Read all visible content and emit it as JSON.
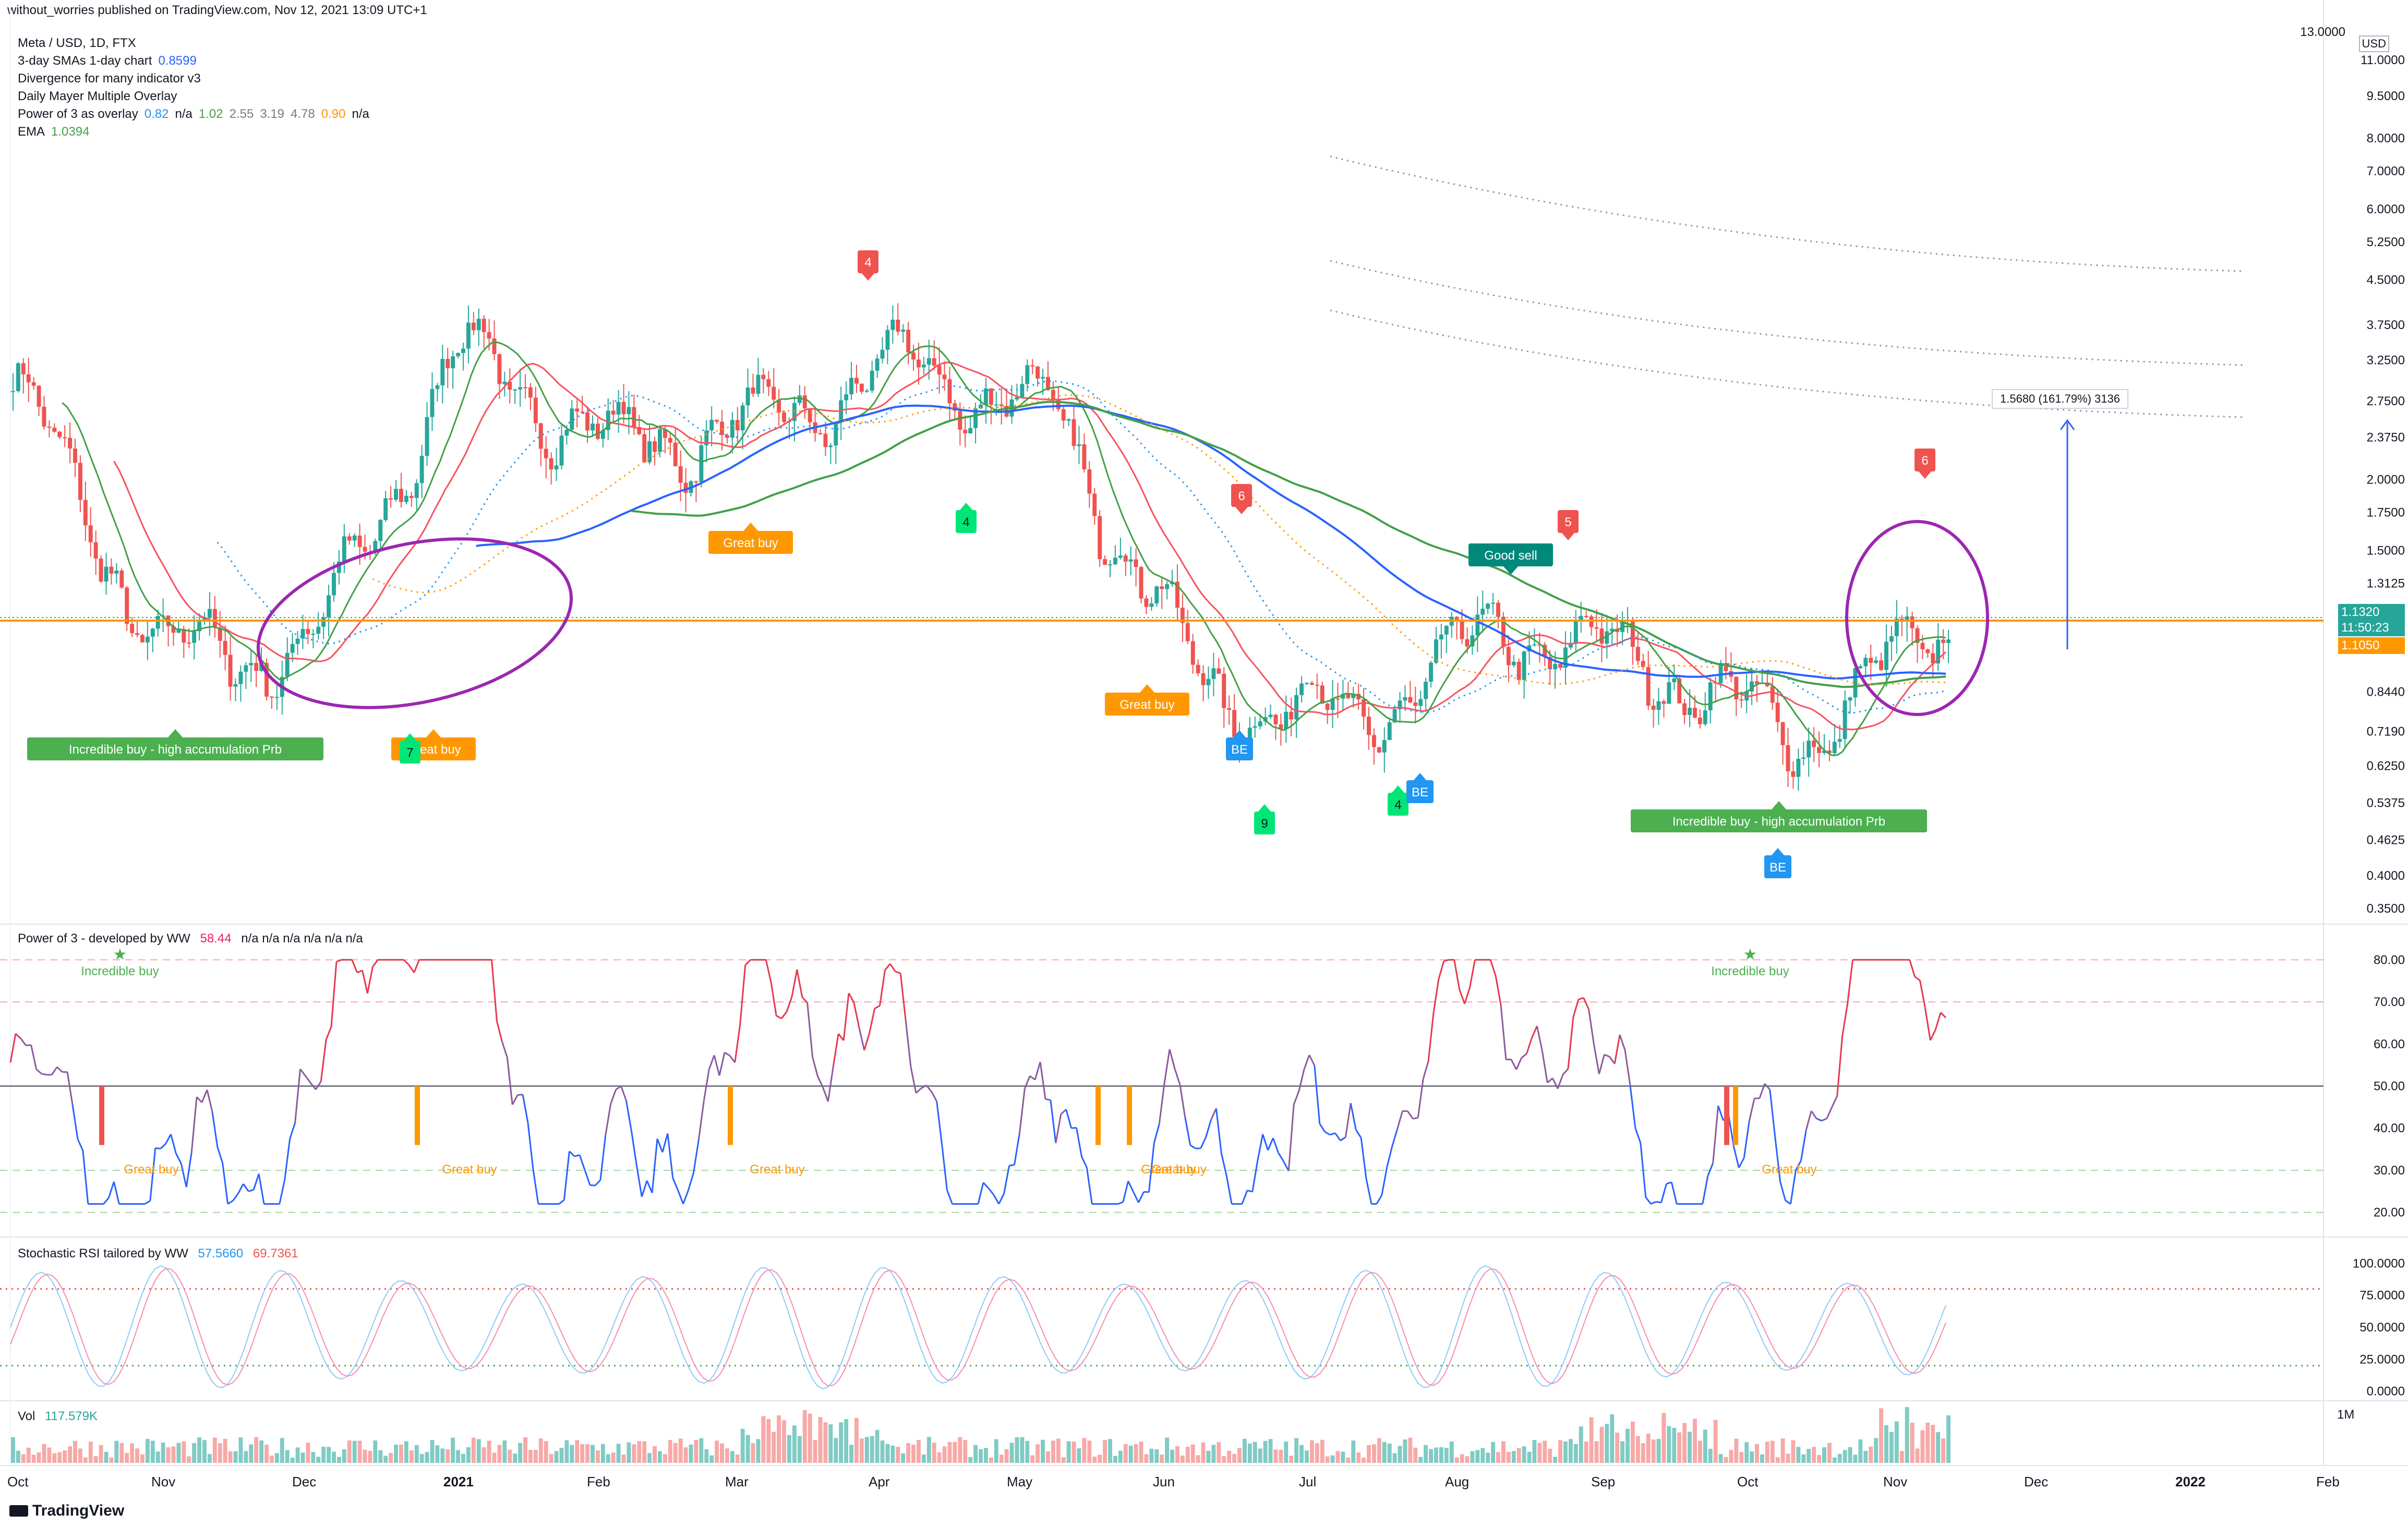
{
  "header": {
    "published": "without_worries published on TradingView.com, Nov 12, 2021 13:09 UTC+1"
  },
  "legend": {
    "symbol": "Meta / USD, 1D, FTX",
    "items": [
      {
        "name": "3-day SMAs 1-day chart",
        "values": [
          "0.8599"
        ],
        "colors": [
          "#2962ff"
        ]
      },
      {
        "name": "Divergence for many indicator v3",
        "values": [],
        "colors": []
      },
      {
        "name": "Daily Mayer Multiple Overlay",
        "values": [],
        "colors": []
      },
      {
        "name": "Power of 3 as overlay",
        "values": [
          "0.82",
          "n/a",
          "1.02",
          "2.55",
          "3.19",
          "4.78",
          "0.90",
          "n/a"
        ],
        "colors": [
          "#2196f3",
          "#131722",
          "#43a047",
          "#787b86",
          "#787b86",
          "#787b86",
          "#ff9800",
          "#131722"
        ]
      },
      {
        "name": "EMA",
        "values": [
          "1.0394"
        ],
        "colors": [
          "#43a047"
        ]
      }
    ]
  },
  "panes": {
    "power": {
      "title": "Power of 3 - developed by WW",
      "value": "58.44",
      "value_color": "#e91e63",
      "na": "n/a  n/a  n/a  n/a  n/a  n/a"
    },
    "stoch": {
      "title": "Stochastic RSI tailored by WW",
      "k": "57.5660",
      "d": "69.7361"
    },
    "vol": {
      "title": "Vol",
      "value": "117.579K"
    }
  },
  "price_axis": {
    "currency": "USD",
    "top_label": "13.0000"
  },
  "price_tags": {
    "last": "1.1320",
    "countdown": "11:50:23",
    "ema": "1.1050"
  },
  "measure": {
    "label": "1.5680 (161.79%) 3136"
  },
  "time_axis": [
    "Oct",
    "Nov",
    "Dec",
    "2021",
    "Feb",
    "Mar",
    "Apr",
    "May",
    "Jun",
    "Jul",
    "Aug",
    "Sep",
    "Oct",
    "Nov",
    "Dec",
    "2022",
    "Feb"
  ],
  "footer": {
    "brand": "TradingView"
  },
  "colors": {
    "up": "#26a69a",
    "down": "#ef5350",
    "ema": "#43a047",
    "sma": "#2962ff",
    "circle": "#9c27b0",
    "orange": "#ff9800"
  },
  "chart_data": {
    "type": "candlestick",
    "price_scale": "log",
    "ylim": [
      0.33,
      13.0
    ],
    "y_ticks": [
      13.0,
      11.0,
      9.5,
      8.0,
      7.0,
      6.0,
      5.25,
      4.5,
      3.75,
      3.25,
      2.75,
      2.375,
      2.0,
      1.75,
      1.5,
      1.3125,
      1.132,
      0.844,
      0.719,
      0.625,
      0.5375,
      0.4625,
      0.4,
      0.35
    ],
    "y_tick_labels": [
      "13.0000",
      "11.0000",
      "9.5000",
      "8.0000",
      "7.0000",
      "6.0000",
      "5.2500",
      "4.5000",
      "3.7500",
      "3.2500",
      "2.7500",
      "2.3750",
      "2.0000",
      "1.7500",
      "1.5000",
      "1.3125",
      "",
      "0.8440",
      "0.7190",
      "0.6250",
      "0.5375",
      "0.4625",
      "0.4000",
      "0.3500"
    ],
    "close_series": [
      {
        "month": "Oct 2020",
        "close": 3.0
      },
      {
        "month": "Nov 2020",
        "close": 1.0
      },
      {
        "month": "Dec 2020",
        "close": 1.0
      },
      {
        "month": "Jan 2021",
        "close": 3.4
      },
      {
        "month": "Feb 2021",
        "close": 2.3
      },
      {
        "month": "Mar 2021",
        "close": 2.5
      },
      {
        "month": "Apr 2021",
        "close": 3.2
      },
      {
        "month": "May 2021",
        "close": 2.6
      },
      {
        "month": "Jun 2021",
        "close": 0.85
      },
      {
        "month": "Jul 2021",
        "close": 0.75
      },
      {
        "month": "Aug 2021",
        "close": 1.1
      },
      {
        "month": "Sep 2021",
        "close": 0.95
      },
      {
        "month": "Oct 2021",
        "close": 0.7
      },
      {
        "month": "Nov 2021",
        "close": 1.13
      }
    ],
    "signals": [
      {
        "text": "Incredible buy - high accumulation Prb",
        "type": "incredible"
      },
      {
        "text": "Great buy",
        "type": "great"
      },
      {
        "text": "Great buy",
        "type": "great"
      },
      {
        "text": "Great buy",
        "type": "great"
      },
      {
        "text": "Good sell",
        "type": "sell"
      },
      {
        "text": "Incredible buy - high accumulation Prb",
        "type": "incredible"
      }
    ],
    "count_markers": [
      {
        "text": "4",
        "kind": "sell"
      },
      {
        "text": "6",
        "kind": "sell"
      },
      {
        "text": "5",
        "kind": "sell"
      },
      {
        "text": "6",
        "kind": "sell"
      },
      {
        "text": "7",
        "kind": "buy"
      },
      {
        "text": "4",
        "kind": "buy"
      },
      {
        "text": "9",
        "kind": "buy"
      },
      {
        "text": "4",
        "kind": "buy"
      },
      {
        "text": "BE",
        "kind": "be"
      },
      {
        "text": "BE",
        "kind": "be"
      },
      {
        "text": "BE",
        "kind": "be"
      }
    ],
    "power_pane": {
      "ylim": [
        15,
        85
      ],
      "ticks": [
        80,
        70,
        60,
        50,
        40,
        30,
        20
      ],
      "tick_labels": [
        "80.00",
        "70.00",
        "60.00",
        "50.00",
        "40.00",
        "30.00",
        "20.00"
      ],
      "annotations": [
        {
          "text": "Incredible buy",
          "star": "★"
        },
        {
          "text": "Great buy"
        },
        {
          "text": "Great buy"
        },
        {
          "text": "Great buy"
        },
        {
          "text": "Great buy"
        },
        {
          "text": "Great buy"
        },
        {
          "text": "Incredible buy",
          "star": "★"
        },
        {
          "text": "Great buy"
        }
      ]
    },
    "stoch_pane": {
      "ylim": [
        -5,
        105
      ],
      "ticks": [
        100,
        75,
        50,
        25,
        0
      ],
      "tick_labels": [
        "100.0000",
        "75.0000",
        "50.0000",
        "25.0000",
        "0.0000"
      ]
    },
    "vol_pane": {
      "tick_label": "1M"
    }
  }
}
